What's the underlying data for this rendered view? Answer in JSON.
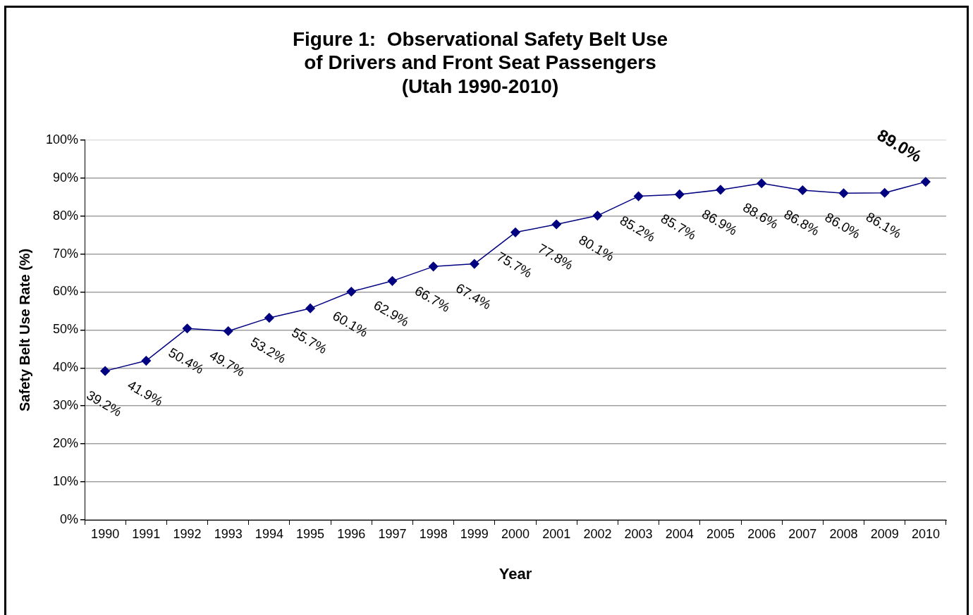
{
  "chart_data": {
    "type": "line",
    "title": "Figure 1:  Observational Safety Belt Use\nof Drivers and Front Seat Passengers\n(Utah 1990-2010)",
    "xlabel": "Year",
    "ylabel": "Safety Belt Use Rate (%)",
    "categories": [
      "1990",
      "1991",
      "1992",
      "1993",
      "1994",
      "1995",
      "1996",
      "1997",
      "1998",
      "1999",
      "2000",
      "2001",
      "2002",
      "2003",
      "2004",
      "2005",
      "2006",
      "2007",
      "2008",
      "2009",
      "2010"
    ],
    "series": [
      {
        "color": "#000080",
        "values": [
          39.2,
          41.9,
          50.4,
          49.7,
          53.2,
          55.7,
          60.1,
          62.9,
          66.7,
          67.4,
          75.7,
          77.8,
          80.1,
          85.2,
          85.7,
          86.9,
          88.6,
          86.8,
          86.0,
          86.1,
          89.0
        ],
        "value_labels": [
          "39.2%",
          "41.9%",
          "50.4%",
          "49.7%",
          "53.2%",
          "55.7%",
          "60.1%",
          "62.9%",
          "66.7%",
          "67.4%",
          "75.7%",
          "77.8%",
          "80.1%",
          "85.2%",
          "85.7%",
          "86.9%",
          "88.6%",
          "86.8%",
          "86.0%",
          "86.1%",
          "89.0%"
        ]
      }
    ],
    "ylim": [
      0,
      100
    ],
    "yticks": [
      {
        "value": 0,
        "label": "0%"
      },
      {
        "value": 10,
        "label": "10%"
      },
      {
        "value": 20,
        "label": "20%"
      },
      {
        "value": 30,
        "label": "30%"
      },
      {
        "value": 40,
        "label": "40%"
      },
      {
        "value": 50,
        "label": "50%"
      },
      {
        "value": 60,
        "label": "60%"
      },
      {
        "value": 70,
        "label": "70%"
      },
      {
        "value": 80,
        "label": "80%"
      },
      {
        "value": 90,
        "label": "90%"
      },
      {
        "value": 100,
        "label": "100%"
      }
    ],
    "grid": "y",
    "legend": false,
    "marker": "diamond",
    "line_style": "solid"
  }
}
